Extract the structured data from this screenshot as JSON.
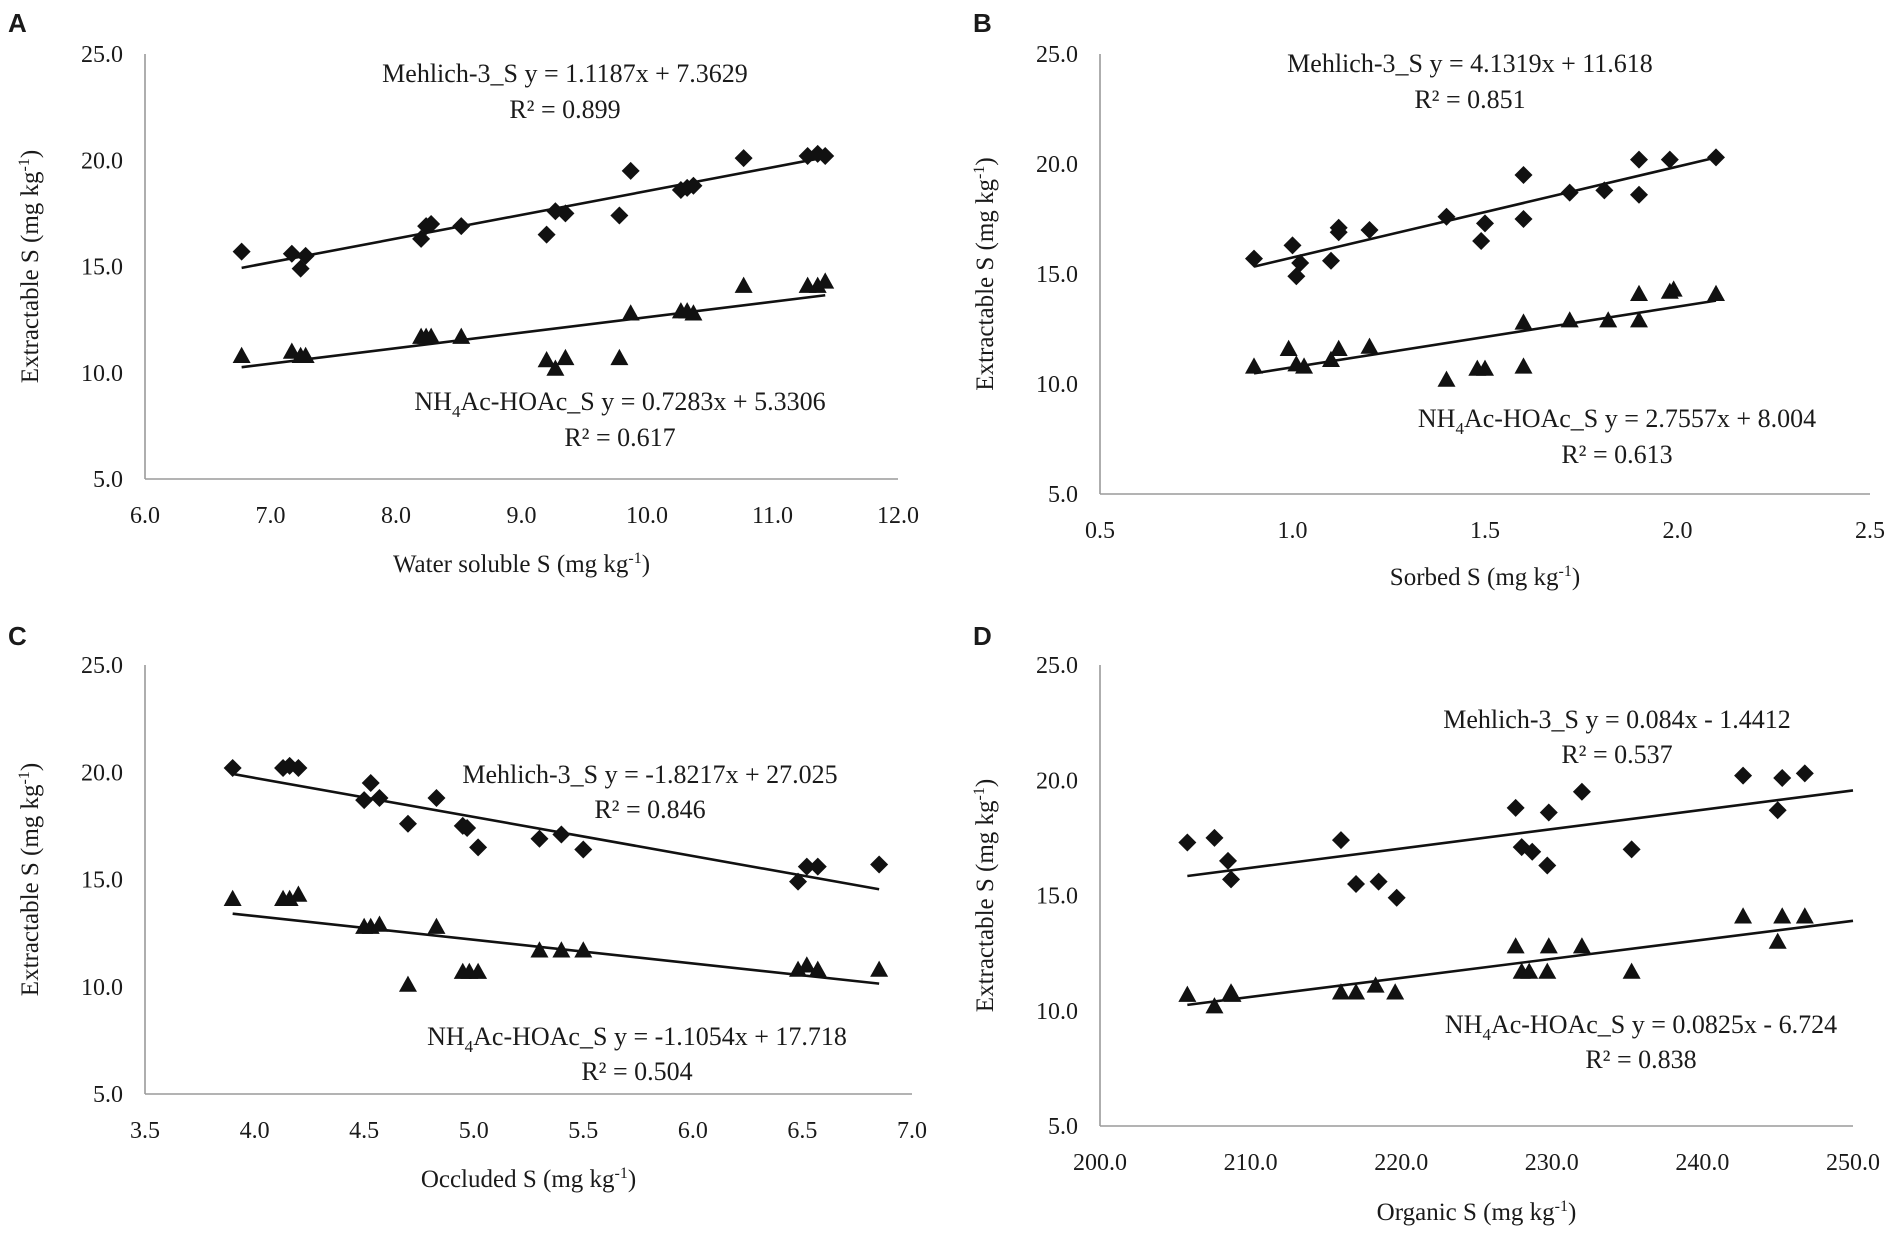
{
  "chart_data": [
    {
      "type": "scatter",
      "panel": "A",
      "xlabel": "Water soluble S (mg kg",
      "xlabel_sup": "-1",
      "xlabel_end": ")",
      "ylabel": "Extractable S (mg kg",
      "ylabel_sup": "-1",
      "ylabel_end": ")",
      "xlim": [
        6.0,
        12.0
      ],
      "xticks": [
        6.0,
        7.0,
        8.0,
        9.0,
        10.0,
        11.0,
        12.0
      ],
      "xtick_labels": [
        "6.0",
        "7.0",
        "8.0",
        "9.0",
        "10.0",
        "11.0",
        "12.0"
      ],
      "ylim": [
        5.0,
        25.0
      ],
      "yticks": [
        5.0,
        10.0,
        15.0,
        20.0,
        25.0
      ],
      "ytick_labels": [
        "5.0",
        "10.0",
        "15.0",
        "20.0",
        "25.0"
      ],
      "series": [
        {
          "name": "Mehlich-3_S",
          "marker": "diamond",
          "x": [
            6.77,
            7.17,
            7.24,
            7.28,
            8.2,
            8.24,
            8.28,
            8.52,
            9.2,
            9.27,
            9.35,
            9.78,
            9.87,
            10.27,
            10.32,
            10.37,
            10.77,
            11.28,
            11.36,
            11.42
          ],
          "y": [
            15.7,
            15.6,
            14.9,
            15.5,
            16.3,
            16.9,
            17.0,
            16.9,
            16.5,
            17.6,
            17.5,
            17.4,
            19.5,
            18.6,
            18.7,
            18.8,
            20.1,
            20.2,
            20.3,
            20.2
          ],
          "fit_slope": 1.1187,
          "fit_intercept": 7.3629,
          "fit_x": [
            6.77,
            11.42
          ],
          "equation": "y = 1.1187x + 7.3629",
          "r2": "R² = 0.899"
        },
        {
          "name": "NH4Ac-HOAc_S",
          "name_pre": "NH",
          "name_sub": "4",
          "name_post": "Ac-HOAc_S",
          "marker": "triangle",
          "x": [
            6.77,
            7.17,
            7.24,
            7.28,
            8.2,
            8.24,
            8.28,
            8.52,
            9.2,
            9.27,
            9.35,
            9.78,
            9.87,
            10.27,
            10.32,
            10.37,
            10.77,
            11.28,
            11.36,
            11.42
          ],
          "y": [
            10.8,
            11.0,
            10.8,
            10.8,
            11.7,
            11.7,
            11.7,
            11.7,
            10.6,
            10.2,
            10.7,
            10.7,
            12.8,
            12.9,
            12.9,
            12.8,
            14.1,
            14.1,
            14.1,
            14.3
          ],
          "fit_slope": 0.7283,
          "fit_intercept": 5.3306,
          "fit_x": [
            6.77,
            11.42
          ],
          "equation": "y = 0.7283x + 5.3306",
          "r2": "R² = 0.617"
        }
      ]
    },
    {
      "type": "scatter",
      "panel": "B",
      "xlabel": "Sorbed S (mg kg",
      "xlabel_sup": "-1",
      "xlabel_end": ")",
      "ylabel": "Extractable S (mg kg",
      "ylabel_sup": "-1",
      "ylabel_end": ")",
      "xlim": [
        0.5,
        2.5
      ],
      "xticks": [
        0.5,
        1.0,
        1.5,
        2.0,
        2.5
      ],
      "xtick_labels": [
        "0.5",
        "1.0",
        "1.5",
        "2.0",
        "2.5"
      ],
      "ylim": [
        5.0,
        25.0
      ],
      "yticks": [
        5.0,
        10.0,
        15.0,
        20.0,
        25.0
      ],
      "ytick_labels": [
        "5.0",
        "10.0",
        "15.0",
        "20.0",
        "25.0"
      ],
      "series": [
        {
          "name": "Mehlich-3_S",
          "marker": "diamond",
          "x": [
            0.9,
            1.0,
            1.01,
            1.02,
            1.1,
            1.12,
            1.12,
            1.2,
            1.4,
            1.49,
            1.5,
            1.6,
            1.6,
            1.72,
            1.81,
            1.9,
            1.9,
            1.98,
            2.1
          ],
          "y": [
            15.7,
            16.3,
            14.9,
            15.5,
            15.6,
            16.9,
            17.1,
            17.0,
            17.6,
            16.5,
            17.3,
            19.5,
            17.5,
            18.7,
            18.8,
            20.2,
            18.6,
            20.2,
            20.3
          ],
          "fit_slope": 4.1319,
          "fit_intercept": 11.618,
          "fit_x": [
            0.9,
            2.1
          ],
          "equation": "y = 4.1319x + 11.618",
          "r2": "R² = 0.851"
        },
        {
          "name": "NH4Ac-HOAc_S",
          "name_pre": "NH",
          "name_sub": "4",
          "name_post": "Ac-HOAc_S",
          "marker": "triangle",
          "x": [
            0.9,
            0.99,
            1.01,
            1.03,
            1.1,
            1.12,
            1.2,
            1.4,
            1.48,
            1.5,
            1.6,
            1.6,
            1.72,
            1.82,
            1.9,
            1.9,
            1.98,
            1.99,
            2.1
          ],
          "y": [
            10.8,
            11.6,
            10.9,
            10.8,
            11.1,
            11.6,
            11.7,
            10.2,
            10.7,
            10.7,
            10.8,
            12.8,
            12.9,
            12.9,
            12.9,
            14.1,
            14.2,
            14.3,
            14.1
          ],
          "fit_slope": 2.7557,
          "fit_intercept": 8.004,
          "fit_x": [
            0.9,
            2.1
          ],
          "equation": "y = 2.7557x + 8.004",
          "r2": "R² = 0.613"
        }
      ]
    },
    {
      "type": "scatter",
      "panel": "C",
      "xlabel": "Occluded S (mg kg",
      "xlabel_sup": "-1",
      "xlabel_end": ")",
      "ylabel": "Extractable S (mg kg",
      "ylabel_sup": "-1",
      "ylabel_end": ")",
      "xlim": [
        3.5,
        7.0
      ],
      "xticks": [
        3.5,
        4.0,
        4.5,
        5.0,
        5.5,
        6.0,
        6.5,
        7.0
      ],
      "xtick_labels": [
        "3.5",
        "4.0",
        "4.5",
        "5.0",
        "5.5",
        "6.0",
        "6.5",
        "7.0"
      ],
      "ylim": [
        5.0,
        25.0
      ],
      "yticks": [
        5.0,
        10.0,
        15.0,
        20.0,
        25.0
      ],
      "ytick_labels": [
        "5.0",
        "10.0",
        "15.0",
        "20.0",
        "25.0"
      ],
      "series": [
        {
          "name": "Mehlich-3_S",
          "marker": "diamond",
          "x": [
            3.9,
            4.13,
            4.16,
            4.2,
            4.5,
            4.53,
            4.57,
            4.7,
            4.83,
            4.95,
            4.97,
            5.02,
            5.3,
            5.4,
            5.5,
            6.48,
            6.52,
            6.57,
            6.85
          ],
          "y": [
            20.2,
            20.2,
            20.3,
            20.2,
            18.7,
            19.5,
            18.8,
            17.6,
            18.8,
            17.5,
            17.4,
            16.5,
            16.9,
            17.1,
            16.4,
            14.9,
            15.6,
            15.6,
            15.7
          ],
          "fit_slope": -1.8217,
          "fit_intercept": 27.025,
          "fit_x": [
            3.9,
            6.85
          ],
          "equation": "y = -1.8217x + 27.025",
          "r2": "R² = 0.846"
        },
        {
          "name": "NH4Ac-HOAc_S",
          "name_pre": "NH",
          "name_sub": "4",
          "name_post": "Ac-HOAc_S",
          "marker": "triangle",
          "x": [
            3.9,
            4.13,
            4.16,
            4.2,
            4.5,
            4.53,
            4.57,
            4.7,
            4.83,
            4.95,
            4.98,
            5.02,
            5.3,
            5.4,
            5.5,
            6.48,
            6.52,
            6.57,
            6.85
          ],
          "y": [
            14.1,
            14.1,
            14.1,
            14.3,
            12.8,
            12.8,
            12.9,
            10.1,
            12.8,
            10.7,
            10.7,
            10.7,
            11.7,
            11.7,
            11.7,
            10.8,
            11.0,
            10.8,
            10.8
          ],
          "fit_slope": -1.1054,
          "fit_intercept": 17.718,
          "fit_x": [
            3.9,
            6.85
          ],
          "equation": "y = -1.1054x + 17.718",
          "r2": "R² = 0.504"
        }
      ]
    },
    {
      "type": "scatter",
      "panel": "D",
      "xlabel": "Organic S (mg kg",
      "xlabel_sup": "-1",
      "xlabel_end": ")",
      "ylabel": "Extractable S (mg kg",
      "ylabel_sup": "-1",
      "ylabel_end": ")",
      "xlim": [
        200.0,
        250.0
      ],
      "xticks": [
        200,
        210,
        220,
        230,
        240,
        250
      ],
      "xtick_labels": [
        "200.0",
        "210.0",
        "220.0",
        "230.0",
        "240.0",
        "250.0"
      ],
      "ylim": [
        5.0,
        25.0
      ],
      "yticks": [
        5.0,
        10.0,
        15.0,
        20.0,
        25.0
      ],
      "ytick_labels": [
        "5.0",
        "10.0",
        "15.0",
        "20.0",
        "25.0"
      ],
      "series": [
        {
          "name": "Mehlich-3_S",
          "marker": "diamond",
          "x": [
            205.8,
            207.6,
            208.5,
            208.7,
            216.0,
            217.0,
            218.5,
            219.7,
            227.6,
            228.0,
            228.7,
            229.7,
            229.8,
            232.0,
            235.3,
            242.7,
            245.0,
            245.3,
            246.8
          ],
          "y": [
            17.3,
            17.5,
            16.5,
            15.7,
            17.4,
            15.5,
            15.6,
            14.9,
            18.8,
            17.1,
            16.9,
            16.3,
            18.6,
            19.5,
            17.0,
            20.2,
            18.7,
            20.1,
            20.3
          ],
          "fit_slope": 0.084,
          "fit_intercept": -1.4412,
          "fit_x": [
            205.8,
            250.0
          ],
          "equation": "y = 0.084x - 1.4412",
          "r2": "R² = 0.537"
        },
        {
          "name": "NH4Ac-HOAc_S",
          "name_pre": "NH",
          "name_sub": "4",
          "name_post": "Ac-HOAc_S",
          "marker": "triangle",
          "x": [
            205.8,
            207.6,
            208.7,
            208.8,
            216.0,
            217.0,
            218.3,
            219.6,
            227.6,
            228.0,
            228.5,
            229.7,
            229.8,
            232.0,
            235.3,
            242.7,
            245.0,
            245.3,
            246.8
          ],
          "y": [
            10.7,
            10.2,
            10.8,
            10.7,
            10.8,
            10.8,
            11.1,
            10.8,
            12.8,
            11.7,
            11.7,
            11.7,
            12.8,
            12.8,
            11.7,
            14.1,
            13.0,
            14.1,
            14.1
          ],
          "fit_slope": 0.0825,
          "fit_intercept": -6.724,
          "fit_x": [
            205.8,
            250.0
          ],
          "equation": "y = 0.0825x - 6.724",
          "r2": "R² = 0.838"
        }
      ]
    }
  ]
}
